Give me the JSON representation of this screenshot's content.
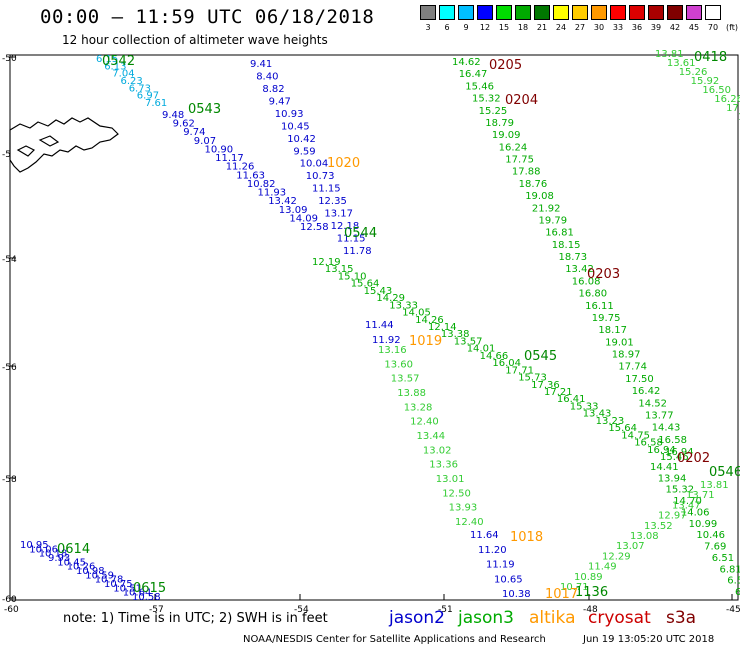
{
  "title": "00:00 – 11:59 UTC 06/18/2018",
  "subtitle": "12 hour collection of altimeter wave heights",
  "scale": {
    "labels": [
      "3",
      "6",
      "9",
      "12",
      "15",
      "18",
      "21",
      "24",
      "27",
      "30",
      "33",
      "36",
      "39",
      "42",
      "45",
      "70",
      "(ft)"
    ],
    "colors": [
      "#7f7f7f",
      "#00ffff",
      "#00bfff",
      "#0000ff",
      "#00dd00",
      "#00aa00",
      "#007700",
      "#ffff00",
      "#ffcc00",
      "#ff9900",
      "#ff0000",
      "#dd0000",
      "#aa0000",
      "#800000",
      "#d040d0",
      "#ffffff"
    ]
  },
  "axes": {
    "lat_labels": [
      "-50",
      "-52",
      "-54",
      "-56",
      "-58",
      "-60"
    ],
    "lon_labels": [
      "-60",
      "-57",
      "-54",
      "-51",
      "-48",
      "-45"
    ]
  },
  "note": "note:  1) Time is in UTC;  2) SWH is in feet",
  "legend": [
    {
      "name": "jason2",
      "color": "#0000cc"
    },
    {
      "name": "jason3",
      "color": "#00aa00"
    },
    {
      "name": "altika",
      "color": "#ff9900"
    },
    {
      "name": "cryosat",
      "color": "#cc0000"
    },
    {
      "name": "s3a",
      "color": "#800000"
    }
  ],
  "credit": "NOAA/NESDIS Center for Satellite Applications and Research",
  "credit_time": "Jun 19 13:05:20 UTC 2018",
  "pass_labels": [
    {
      "id": "0542",
      "color": "#008800"
    },
    {
      "id": "0543",
      "color": "#008800"
    },
    {
      "id": "0544",
      "color": "#008800"
    },
    {
      "id": "0545",
      "color": "#008800"
    },
    {
      "id": "0546",
      "color": "#008800"
    },
    {
      "id": "0418",
      "color": "#008800"
    },
    {
      "id": "0614",
      "color": "#008800"
    },
    {
      "id": "0615",
      "color": "#008800"
    },
    {
      "id": "1020",
      "color": "#ff9900"
    },
    {
      "id": "1019",
      "color": "#ff9900"
    },
    {
      "id": "1018",
      "color": "#ff9900"
    },
    {
      "id": "1017",
      "color": "#ff9900"
    },
    {
      "id": "0205",
      "color": "#800000"
    },
    {
      "id": "0204",
      "color": "#800000"
    },
    {
      "id": "0203",
      "color": "#800000"
    },
    {
      "id": "0202",
      "color": "#800000"
    },
    {
      "id": "1136",
      "color": "#008800"
    }
  ],
  "tracks": [
    {
      "name": "jason3-0542",
      "color": "#00aadd",
      "values": [
        "6.15",
        "6.13",
        "7.04",
        "6.23",
        "6.73",
        "6.97",
        "7.61"
      ]
    },
    {
      "name": "jason3-0543",
      "color": "#0000cc",
      "values": [
        "9.48",
        "9.62",
        "9.74",
        "9.07",
        "10.90",
        "11.17",
        "11.26",
        "11.63",
        "10.82",
        "11.93",
        "13.42",
        "13.09",
        "14.09",
        "12.58"
      ]
    },
    {
      "name": "jason2-a",
      "color": "#0000cc",
      "values": [
        "9.41",
        "8.40",
        "8.82",
        "9.47",
        "10.93",
        "10.45",
        "10.42",
        "9.59",
        "10.04",
        "10.73",
        "11.15",
        "12.35",
        "13.17",
        "12.18",
        "11.15",
        "11.78"
      ]
    },
    {
      "name": "jason3-0544",
      "color": "#00aa00",
      "values": [
        "12.19",
        "13.15",
        "15.10",
        "15.64",
        "15.43",
        "14.29",
        "13.33",
        "14.05",
        "14.26",
        "12.14",
        "13.38",
        "13.57",
        "14.01",
        "14.66",
        "16.04",
        "17.71",
        "15.73",
        "17.36",
        "17.21",
        "16.41",
        "15.33",
        "13.43",
        "13.23",
        "15.64",
        "14.75",
        "16.58",
        "16.94",
        "15.46"
      ]
    },
    {
      "name": "jason2-b",
      "color": "#0000cc",
      "values": [
        "11.44",
        "11.92"
      ]
    },
    {
      "name": "altika-1019",
      "color": "#33cc33",
      "values": [
        "13.16",
        "13.60",
        "13.57",
        "13.88",
        "13.28",
        "12.40",
        "13.44",
        "13.02",
        "13.36",
        "13.01",
        "12.50",
        "13.93",
        "12.40"
      ]
    },
    {
      "name": "jason2-c",
      "color": "#0000cc",
      "values": [
        "11.64",
        "11.20",
        "11.19",
        "10.65",
        "10.38"
      ]
    },
    {
      "name": "cryosat-0205",
      "color": "#00aa00",
      "values": [
        "14.62",
        "16.47",
        "15.46",
        "15.32",
        "15.25",
        "18.79",
        "19.09",
        "16.24",
        "17.75",
        "17.88",
        "18.76",
        "19.08",
        "21.92",
        "19.79",
        "16.81",
        "18.15",
        "18.73",
        "13.42",
        "16.08",
        "16.80",
        "16.11",
        "19.75",
        "18.17",
        "19.01",
        "18.97",
        "17.74",
        "17.50",
        "16.42",
        "14.52",
        "13.77",
        "14.43",
        "16.58",
        "16.94"
      ]
    },
    {
      "name": "cryosat-0418",
      "color": "#33cc33",
      "values": [
        "13.81",
        "13.61",
        "15.26",
        "15.92",
        "16.50",
        "16.26",
        "17.13",
        "16.21"
      ]
    },
    {
      "name": "s3a-0202",
      "color": "#00aa00",
      "values": [
        "14.41",
        "13.94",
        "15.32",
        "14.70",
        "14.06",
        "10.99",
        "10.46",
        "7.69",
        "6.51",
        "6.81",
        "6.58",
        "6.18"
      ]
    },
    {
      "name": "jason3-0546",
      "color": "#33cc33",
      "values": [
        "13.81",
        "13.71",
        "13.47",
        "12.97",
        "13.52",
        "13.08",
        "13.07",
        "12.29",
        "11.49",
        "10.89",
        "10.71"
      ]
    },
    {
      "name": "jason2-0614",
      "color": "#0000cc",
      "values": [
        "10.95",
        "10.06",
        "10.18",
        "9.93",
        "10.45",
        "10.26",
        "10.98",
        "10.59",
        "10.78",
        "10.75",
        "10.51",
        "10.64",
        "10.58"
      ]
    }
  ]
}
